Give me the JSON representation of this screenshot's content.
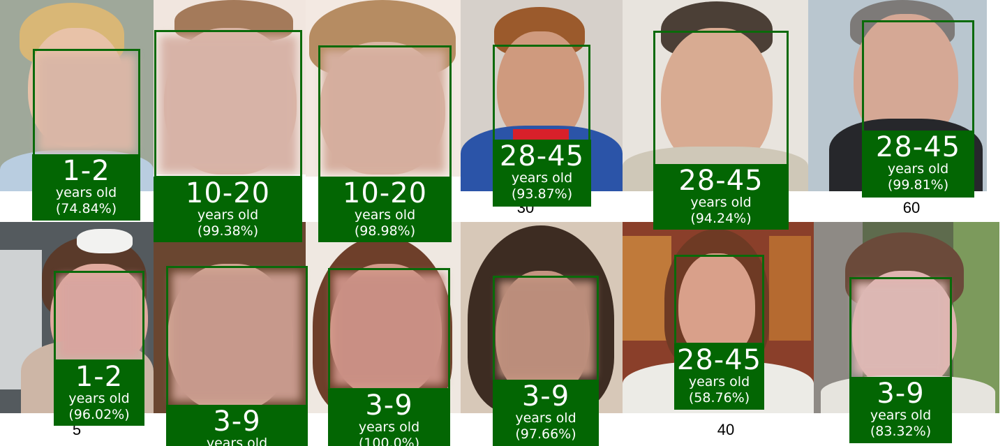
{
  "faces": [
    {
      "range": "1-2",
      "unit": "years old",
      "confidence": "(74.84%)"
    },
    {
      "range": "10-20",
      "unit": "years old",
      "confidence": "(99.38%)"
    },
    {
      "range": "10-20",
      "unit": "years old",
      "confidence": "(98.98%)"
    },
    {
      "range": "28-45",
      "unit": "years old",
      "confidence": "(93.87%)"
    },
    {
      "range": "28-45",
      "unit": "years old",
      "confidence": "(94.24%)"
    },
    {
      "range": "28-45",
      "unit": "years old",
      "confidence": "(99.81%)"
    },
    {
      "range": "1-2",
      "unit": "years old",
      "confidence": "(96.02%)"
    },
    {
      "range": "3-9",
      "unit": "years old",
      "confidence": ""
    },
    {
      "range": "3-9",
      "unit": "years old",
      "confidence": "(100.0%)"
    },
    {
      "range": "3-9",
      "unit": "years old",
      "confidence": "(97.66%)"
    },
    {
      "range": "28-45",
      "unit": "years old",
      "confidence": "(58.76%)"
    },
    {
      "range": "3-9",
      "unit": "years old",
      "confidence": "(83.32%)"
    }
  ],
  "captions": [
    "30",
    "60",
    "5",
    "40"
  ],
  "colors": {
    "box": "#0a6a0a",
    "label_bg": "#036603",
    "label_text": "#ffffff"
  }
}
